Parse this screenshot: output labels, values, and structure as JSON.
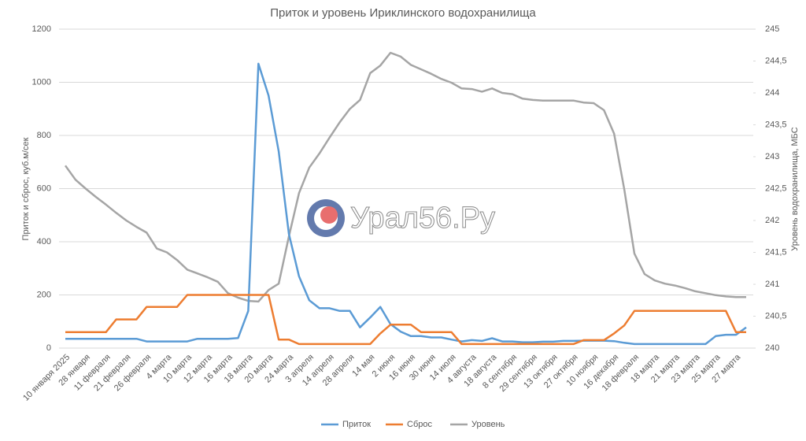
{
  "chart_data": {
    "type": "line",
    "title": "Приток и уровень Ириклинского водохранилища",
    "y_label": "Приток и сброс, куб.м/сек",
    "y2_label": "Уровень водохранилища, МБС",
    "watermark": "Урал56.Ру",
    "categories": [
      "10 января 2025",
      null,
      "28 января",
      null,
      "11 февраля",
      null,
      "21 февраля",
      null,
      "26 февраля",
      null,
      "4 марта",
      null,
      "10 марта",
      null,
      "12 марта",
      null,
      "16 марта",
      null,
      "18 марта",
      null,
      "20 марта",
      null,
      "24 марта",
      null,
      "3 апреля",
      null,
      "14 апреля",
      null,
      "28 апреля",
      null,
      "14 мая",
      null,
      "2 июня",
      null,
      "16 июня",
      null,
      "30 июня",
      null,
      "14 июля",
      null,
      "4 августа",
      null,
      "18 августа",
      null,
      "8 сентября",
      null,
      "29 сентября",
      null,
      "13 октября",
      null,
      "27 октября",
      null,
      "10 ноября",
      null,
      "16 декабря",
      null,
      "18 февраля",
      null,
      "18 марта",
      null,
      "21 марта",
      null,
      "23 марта",
      null,
      "25 марта",
      null,
      "27 марта",
      null
    ],
    "series": [
      {
        "name": "Приток",
        "color": "#5b9bd5",
        "values": [
          35,
          35,
          35,
          35,
          35,
          35,
          35,
          35,
          25,
          25,
          25,
          25,
          25,
          35,
          35,
          35,
          35,
          38,
          140,
          1070,
          950,
          740,
          430,
          270,
          180,
          150,
          150,
          140,
          140,
          78,
          115,
          155,
          90,
          62,
          45,
          45,
          40,
          40,
          32,
          25,
          30,
          27,
          37,
          25,
          25,
          22,
          22,
          24,
          24,
          27,
          27,
          28,
          28,
          28,
          26,
          20,
          15,
          15,
          15,
          15,
          15,
          15,
          15,
          15,
          45,
          50,
          50,
          78
        ]
      },
      {
        "name": "Сброс",
        "color": "#ed7d31",
        "values": [
          60,
          60,
          60,
          60,
          60,
          108,
          108,
          108,
          155,
          155,
          155,
          155,
          200,
          200,
          200,
          200,
          200,
          200,
          200,
          200,
          200,
          32,
          32,
          15,
          15,
          15,
          15,
          15,
          15,
          15,
          15,
          55,
          88,
          88,
          88,
          60,
          60,
          60,
          60,
          15,
          15,
          15,
          15,
          15,
          15,
          15,
          15,
          15,
          15,
          15,
          15,
          30,
          30,
          30,
          55,
          85,
          140,
          140,
          140,
          140,
          140,
          140,
          140,
          140,
          140,
          140,
          60,
          60
        ]
      },
      {
        "name": "Уровень",
        "color": "#a5a5a5",
        "axis": "y2",
        "values": [
          242.86,
          242.64,
          242.5,
          242.37,
          242.25,
          242.12,
          242.0,
          241.9,
          241.81,
          241.56,
          241.5,
          241.38,
          241.23,
          241.17,
          241.11,
          241.04,
          240.86,
          240.79,
          240.74,
          240.73,
          240.91,
          241.01,
          241.75,
          242.43,
          242.83,
          243.05,
          243.3,
          243.54,
          243.75,
          243.89,
          244.31,
          244.43,
          244.63,
          244.57,
          244.44,
          244.37,
          244.3,
          244.22,
          244.16,
          244.07,
          244.06,
          244.02,
          244.07,
          244.0,
          243.98,
          243.91,
          243.89,
          243.88,
          243.88,
          243.88,
          243.88,
          243.85,
          243.84,
          243.73,
          243.36,
          242.49,
          241.48,
          241.16,
          241.06,
          241.01,
          240.98,
          240.94,
          240.89,
          240.86,
          240.83,
          240.81,
          240.8,
          240.8
        ]
      }
    ],
    "ylim": [
      0,
      1200
    ],
    "yticks": [
      0,
      200,
      400,
      600,
      800,
      1000,
      1200
    ],
    "y2lim": [
      240,
      245
    ],
    "y2ticks": [
      240,
      {
        "value": 240.5,
        "label": "240,5"
      },
      241,
      {
        "value": 241.5,
        "label": "241,5"
      },
      242,
      {
        "value": 242.5,
        "label": "242,5"
      },
      243,
      {
        "value": 243.5,
        "label": "243,5"
      },
      244,
      {
        "value": 244.5,
        "label": "244,5"
      },
      245
    ],
    "grid": true,
    "legend": "bottom"
  }
}
